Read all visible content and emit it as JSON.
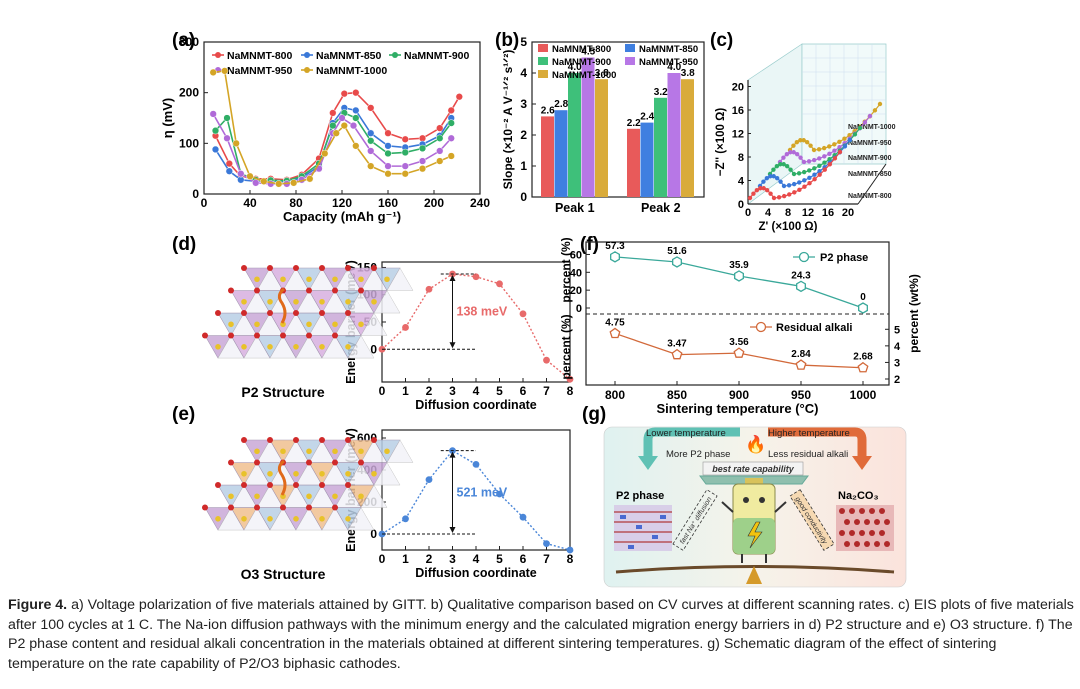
{
  "panel_labels": [
    "(a)",
    "(b)",
    "(c)",
    "(d)",
    "(e)",
    "(f)",
    "(g)"
  ],
  "chart_data": [
    {
      "id": "a",
      "type": "line",
      "xlabel": "Capacity (mAh g⁻¹)",
      "ylabel": "η (mV)",
      "xlim": [
        0,
        240
      ],
      "ylim": [
        0,
        300
      ],
      "xticks": [
        "0",
        "40",
        "80",
        "120",
        "160",
        "200",
        "240"
      ],
      "yticks": [
        "0",
        "100",
        "200",
        "300"
      ],
      "series": [
        {
          "name": "NaMNMT-800",
          "color": "#e84a4a",
          "x": [
            10,
            22,
            32,
            45,
            58,
            72,
            85,
            100,
            112,
            122,
            132,
            145,
            160,
            175,
            190,
            205,
            215,
            222
          ],
          "y": [
            115,
            60,
            35,
            30,
            30,
            28,
            38,
            70,
            160,
            198,
            200,
            170,
            120,
            108,
            110,
            130,
            165,
            192
          ]
        },
        {
          "name": "NaMNMT-850",
          "color": "#3a78d8",
          "x": [
            10,
            22,
            32,
            45,
            58,
            72,
            85,
            100,
            112,
            122,
            132,
            145,
            160,
            175,
            190,
            205,
            215
          ],
          "y": [
            88,
            45,
            28,
            25,
            26,
            24,
            32,
            55,
            140,
            170,
            165,
            120,
            95,
            92,
            98,
            115,
            150
          ]
        },
        {
          "name": "NaMNMT-900",
          "color": "#2fae66",
          "x": [
            10,
            20,
            32,
            45,
            58,
            72,
            85,
            100,
            112,
            122,
            132,
            145,
            160,
            175,
            190,
            205,
            215
          ],
          "y": [
            125,
            150,
            40,
            28,
            27,
            26,
            35,
            60,
            135,
            160,
            150,
            105,
            80,
            82,
            90,
            110,
            140
          ]
        },
        {
          "name": "NaMNMT-950",
          "color": "#b06ad8",
          "x": [
            8,
            20,
            32,
            45,
            58,
            72,
            85,
            100,
            112,
            120,
            130,
            145,
            160,
            175,
            190,
            205,
            215
          ],
          "y": [
            158,
            110,
            40,
            22,
            20,
            20,
            28,
            50,
            120,
            150,
            135,
            85,
            55,
            55,
            65,
            85,
            110
          ]
        },
        {
          "name": "NaMNMT-1000",
          "color": "#d4a526",
          "x": [
            8,
            18,
            28,
            40,
            52,
            65,
            78,
            92,
            105,
            115,
            122,
            132,
            145,
            160,
            175,
            190,
            205,
            215
          ],
          "y": [
            240,
            243,
            100,
            35,
            25,
            20,
            22,
            30,
            80,
            120,
            135,
            95,
            55,
            40,
            40,
            50,
            65,
            75
          ]
        }
      ]
    },
    {
      "id": "b",
      "type": "bar",
      "ylabel": "Slope (×10⁻² A V⁻¹ᐟ² s¹ᐟ²)",
      "categories": [
        "Peak 1",
        "Peak 2"
      ],
      "ylim": [
        0,
        5
      ],
      "yticks": [
        "0",
        "1",
        "2",
        "3",
        "4",
        "5"
      ],
      "series": [
        {
          "name": "NaMNMT-800",
          "color": "#e85a5a",
          "values": [
            2.6,
            2.2
          ]
        },
        {
          "name": "NaMNMT-850",
          "color": "#3f7fe0",
          "values": [
            2.8,
            2.4
          ]
        },
        {
          "name": "NaMNMT-900",
          "color": "#3ec07a",
          "values": [
            4.0,
            3.2
          ]
        },
        {
          "name": "NaMNMT-950",
          "color": "#b777e6",
          "values": [
            4.5,
            4.0
          ]
        },
        {
          "name": "NaMNMT-1000",
          "color": "#d9ab3a",
          "values": [
            3.8,
            3.8
          ]
        }
      ],
      "value_labels": [
        [
          "2.6",
          "2.8",
          "4.0",
          "4.5",
          "3.8"
        ],
        [
          "2.2",
          "2.4",
          "3.2",
          "4.0",
          "3.8"
        ]
      ]
    },
    {
      "id": "c",
      "type": "line",
      "xlabel": "Z' (×100 Ω)",
      "ylabel": "−Z'' (×100 Ω)",
      "xticks": [
        "0",
        "4",
        "8",
        "12",
        "16",
        "20"
      ],
      "yticks": [
        "0",
        "4",
        "8",
        "12",
        "16",
        "20"
      ],
      "series_labels": [
        "NaMNMT-1000",
        "NaMNMT-950",
        "NaMNMT-900",
        "NaMNMT-850",
        "NaMNMT-800"
      ]
    },
    {
      "id": "d",
      "type": "line",
      "xlabel": "Diffusion coordinate",
      "ylabel": "Energy barrier (meV)",
      "xlim": [
        0,
        8
      ],
      "ylim": [
        -60,
        160
      ],
      "xticks": [
        "0",
        "1",
        "2",
        "3",
        "4",
        "5",
        "6",
        "7",
        "8"
      ],
      "yticks": [
        "0",
        "50",
        "100",
        "150"
      ],
      "color": "#e86a6a",
      "x": [
        0,
        1,
        2,
        3,
        4,
        5,
        6,
        7,
        8
      ],
      "y": [
        0,
        40,
        110,
        138,
        133,
        120,
        65,
        -20,
        -55
      ],
      "annotation": "138 meV"
    },
    {
      "id": "e",
      "type": "line",
      "xlabel": "Diffusion coordinate",
      "ylabel": "Energy barrier (meV)",
      "xlim": [
        0,
        8
      ],
      "ylim": [
        -100,
        650
      ],
      "xticks": [
        "0",
        "1",
        "2",
        "3",
        "4",
        "5",
        "6",
        "7",
        "8"
      ],
      "yticks": [
        "0",
        "200",
        "400",
        "600"
      ],
      "color": "#4a86d8",
      "x": [
        0,
        1,
        2,
        3,
        4,
        5,
        6,
        7,
        8
      ],
      "y": [
        0,
        95,
        340,
        521,
        435,
        250,
        105,
        -60,
        -100
      ],
      "annotation": "521 meV"
    },
    {
      "id": "f",
      "type": "line",
      "xlabel": "Sintering temperature (°C)",
      "ylabel_left": "percent (%)",
      "ylabel_right": "percent (wt%)",
      "categories": [
        "800",
        "850",
        "900",
        "950",
        "1000"
      ],
      "yticks_left": [
        "0",
        "20",
        "40",
        "60"
      ],
      "yticks_right": [
        "2",
        "3",
        "4",
        "5"
      ],
      "series": [
        {
          "name": "P2 phase",
          "color": "#3aa89a",
          "values": [
            57.3,
            51.6,
            35.9,
            24.3,
            0
          ],
          "labels": [
            "57.3",
            "51.6",
            "35.9",
            "24.3",
            "0"
          ]
        },
        {
          "name": "Residual alkali",
          "color": "#d2693a",
          "values": [
            4.75,
            3.47,
            3.56,
            2.84,
            2.68
          ],
          "labels": [
            "4.75",
            "3.47",
            "3.56",
            "2.84",
            "2.68"
          ]
        }
      ]
    }
  ],
  "structures": {
    "p2": "P2 Structure",
    "o3": "O3 Structure"
  },
  "schematic": {
    "lower_temperature": "Lower temperature",
    "higher_temperature": "Higher temperature",
    "more_p2": "More P2 phase",
    "less_alkali": "Less residual alkali",
    "best_rate": "best rate capability",
    "p2_phase": "P2 phase",
    "na2co3": "Na₂CO₃",
    "fast_na": "fast Na⁺ diffusion",
    "good_conductivity": "good conductivity"
  },
  "caption": {
    "label": "Figure 4.",
    "text": "a) Voltage polarization of five materials attained by GITT. b) Qualitative comparison based on CV curves at different scanning rates. c) EIS plots of five materials after 100 cycles at 1 C. The Na-ion diffusion pathways with the minimum energy and the calculated migration energy barriers in d) P2 structure and e) O3 structure. f) The P2 phase content and residual alkali concentration in the materials obtained at different sintering temperatures. g) Schematic diagram of the effect of sintering temperature on the rate capability of P2/O3 biphasic cathodes."
  }
}
